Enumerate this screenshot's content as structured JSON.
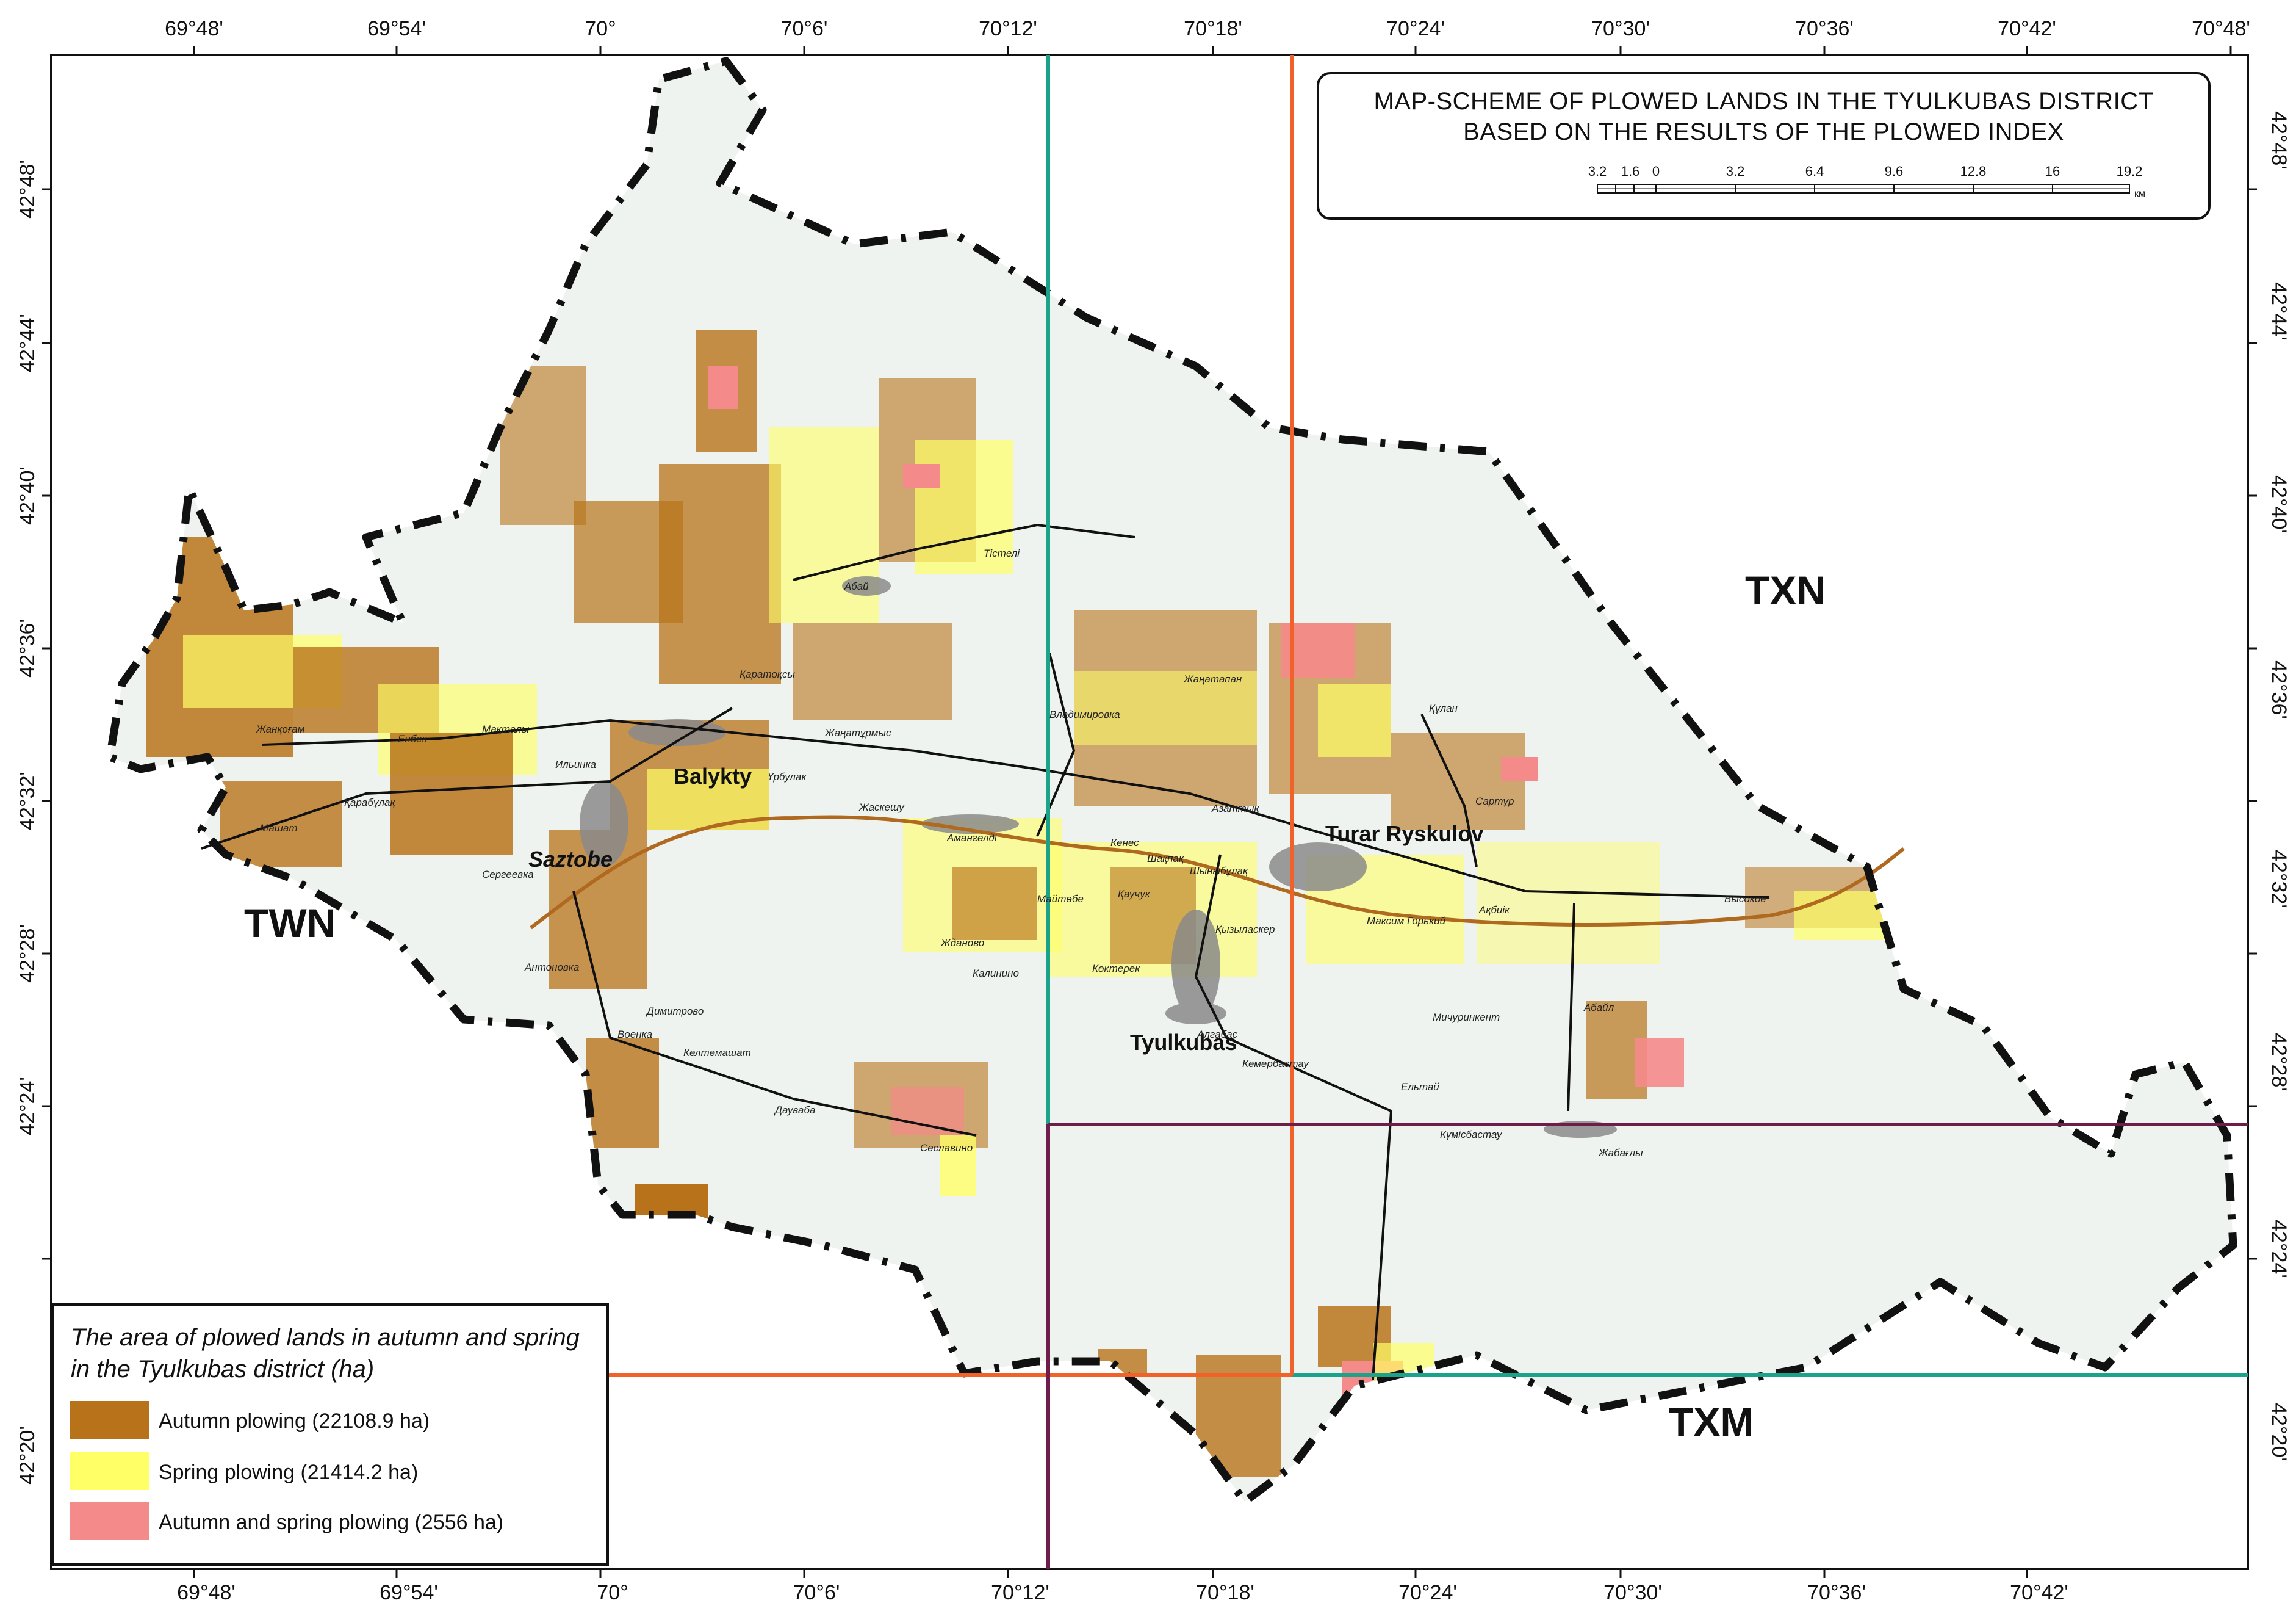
{
  "title": {
    "line1": "MAP-SCHEME OF PLOWED LANDS IN THE TYULKUBAS DISTRICT",
    "line2": "BASED ON THE RESULTS OF THE PLOWED INDEX"
  },
  "scale_bar": {
    "labels": [
      "3.2",
      "1.6",
      "0",
      "3.2",
      "6.4",
      "9.6",
      "12.8",
      "16",
      "19.2"
    ],
    "unit": "км"
  },
  "axes": {
    "longitude_ticks": [
      "69°48'",
      "69°54'",
      "70°",
      "70°6'",
      "70°12'",
      "70°18'",
      "70°24'",
      "70°30'",
      "70°36'",
      "70°42'",
      "70°48'"
    ],
    "longitude_ticks_bottom": [
      "69°48'",
      "69°54'",
      "70°",
      "70°6'",
      "70°12'",
      "70°18'",
      "70°24'",
      "70°30'",
      "70°36'",
      "70°42'"
    ],
    "latitude_ticks": [
      "42°48'",
      "42°44'",
      "42°40'",
      "42°36'",
      "42°32'",
      "42°28'",
      "42°24'",
      "42°20'"
    ]
  },
  "zones": [
    "TXN",
    "TWN",
    "TXM"
  ],
  "towns": [
    "Balykty",
    "Saztobe",
    "Turar Ryskulov",
    "Tyulkubas"
  ],
  "villages": [
    "Тістелі",
    "Абай",
    "Жанқоғам",
    "Енбек",
    "Мақталы",
    "Ильинка",
    "Қарабұлақ",
    "Машат",
    "Сергеевка",
    "Антоновка",
    "Димитрово",
    "Военка",
    "Келтемашат",
    "Дауваба",
    "Сеславино",
    "Қаратоқсы",
    "Жаңатұрмыс",
    "Үрбулак",
    "Жаскешу",
    "Владимировка",
    "Жаңатапан",
    "Азаттық",
    "Құлан",
    "Сартұр",
    "Амангелді",
    "Кенес",
    "Шақпақ",
    "Шыныбұлақ",
    "Майтөбе",
    "Қаучук",
    "Жданово",
    "Калинино",
    "Көктерек",
    "Қызыласкер",
    "Максим Горький",
    "Ақбиік",
    "Высокое",
    "Алгабас",
    "Кемербастау",
    "Мичуринкент",
    "Абайл",
    "Ельтай",
    "Күмісбастау",
    "Жабағлы"
  ],
  "legend": {
    "title_line1": "The area of plowed lands in autumn and spring",
    "title_line2": "in the Tyulkubas district (ha)",
    "items": [
      {
        "label": "Autumn plowing (22108.9 ha)",
        "color": "#b8731a"
      },
      {
        "label": "Spring plowing (21414.2 ha)",
        "color": "#ffff66"
      },
      {
        "label": "Autumn and spring plowing (2556 ha)",
        "color": "#f58a8a"
      }
    ]
  },
  "colors": {
    "teal_line": "#1aa38a",
    "orange_line": "#f0622a",
    "purple_line": "#6e1c4a",
    "road": "#b06a20",
    "boundary": "#111111",
    "terrain": "#eef3ef"
  }
}
